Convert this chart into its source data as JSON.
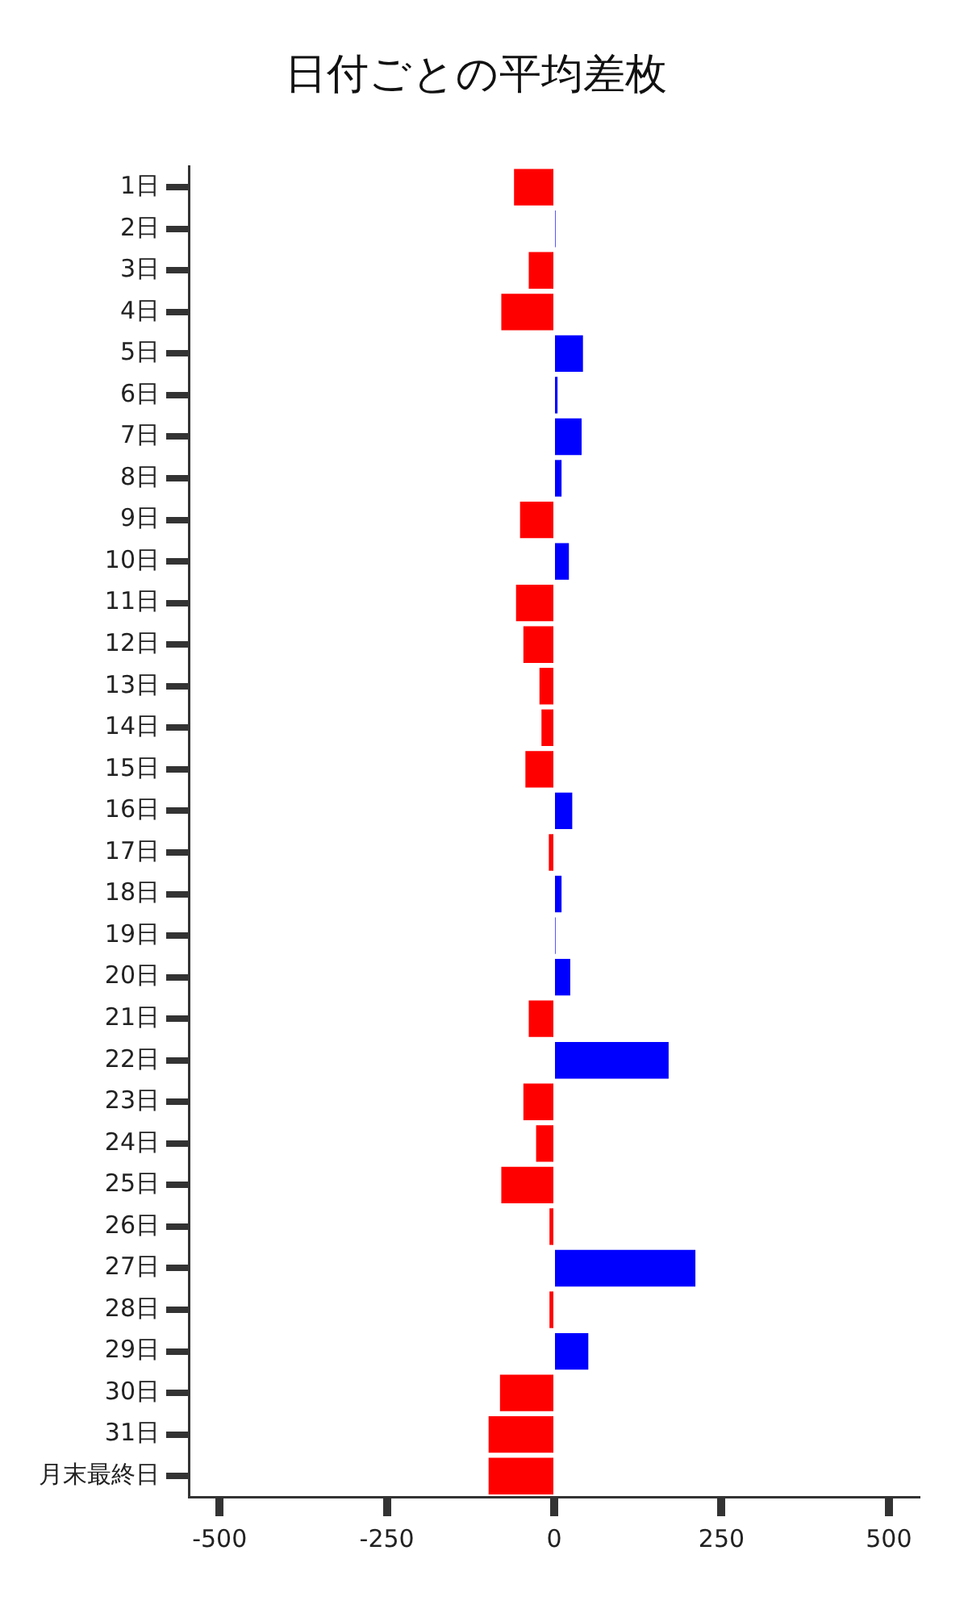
{
  "chart_data": {
    "type": "bar",
    "orientation": "horizontal",
    "title": "日付ごとの平均差枚",
    "categories": [
      "1日",
      "2日",
      "3日",
      "4日",
      "5日",
      "6日",
      "7日",
      "8日",
      "9日",
      "10日",
      "11日",
      "12日",
      "13日",
      "14日",
      "15日",
      "16日",
      "17日",
      "18日",
      "19日",
      "20日",
      "21日",
      "22日",
      "23日",
      "24日",
      "25日",
      "26日",
      "27日",
      "28日",
      "29日",
      "30日",
      "31日",
      "月末最終日"
    ],
    "values": [
      -60,
      2,
      -38,
      -79,
      43,
      5,
      41,
      11,
      -51,
      22,
      -57,
      -46,
      -22,
      -19,
      -43,
      27,
      -8,
      11,
      2,
      24,
      -38,
      171,
      -46,
      -27,
      -79,
      -7,
      211,
      -7,
      51,
      -81,
      -98,
      -98
    ],
    "colors": [
      "#ff0000",
      "#0000ff",
      "#ff0000",
      "#ff0000",
      "#0000ff",
      "#0000ff",
      "#0000ff",
      "#0000ff",
      "#ff0000",
      "#0000ff",
      "#ff0000",
      "#ff0000",
      "#ff0000",
      "#ff0000",
      "#ff0000",
      "#0000ff",
      "#ff0000",
      "#0000ff",
      "#0000ff",
      "#0000ff",
      "#ff0000",
      "#0000ff",
      "#ff0000",
      "#ff0000",
      "#ff0000",
      "#ff0000",
      "#0000ff",
      "#ff0000",
      "#0000ff",
      "#ff0000",
      "#ff0000",
      "#ff0000"
    ],
    "xlim": [
      -546,
      546
    ],
    "xticks": [
      -500,
      -250,
      0,
      250,
      500
    ],
    "grid": false,
    "legend": false
  }
}
